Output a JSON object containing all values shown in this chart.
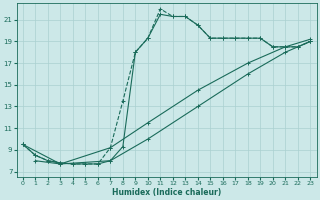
{
  "xlabel": "Humidex (Indice chaleur)",
  "xlim": [
    -0.5,
    23.5
  ],
  "ylim": [
    6.5,
    22.5
  ],
  "xticks": [
    0,
    1,
    2,
    3,
    4,
    5,
    6,
    7,
    8,
    9,
    10,
    11,
    12,
    13,
    14,
    15,
    16,
    17,
    18,
    19,
    20,
    21,
    22,
    23
  ],
  "yticks": [
    7,
    9,
    11,
    13,
    15,
    17,
    19,
    21
  ],
  "bg_color": "#cce8e8",
  "line_color": "#1a6b5a",
  "grid_color": "#aad0d0",
  "series": [
    {
      "x": [
        0,
        1,
        2,
        3,
        4,
        5,
        6,
        7,
        8,
        9,
        10,
        11,
        12,
        13,
        14,
        15,
        16,
        17,
        18,
        19,
        20,
        21,
        22,
        23
      ],
      "y": [
        9.5,
        8.5,
        8.0,
        7.8,
        7.7,
        7.7,
        7.7,
        9.2,
        13.5,
        18.0,
        19.3,
        22.0,
        21.3,
        21.3,
        20.5,
        19.3,
        19.3,
        19.3,
        19.3,
        19.3,
        18.5,
        18.5,
        18.5,
        19.0
      ],
      "linestyle": "--"
    },
    {
      "x": [
        0,
        1,
        2,
        3,
        4,
        5,
        6,
        7,
        8,
        9,
        10,
        11,
        12,
        13,
        14,
        15,
        16,
        17,
        18,
        19,
        20,
        21,
        22,
        23
      ],
      "y": [
        9.5,
        8.5,
        8.0,
        7.8,
        7.7,
        7.7,
        7.7,
        8.0,
        9.3,
        18.0,
        19.3,
        21.5,
        21.3,
        21.3,
        20.5,
        19.3,
        19.3,
        19.3,
        19.3,
        19.3,
        18.5,
        18.5,
        18.5,
        19.0
      ],
      "linestyle": "-"
    },
    {
      "x": [
        1,
        3,
        7,
        10,
        14,
        18,
        21,
        23
      ],
      "y": [
        8.0,
        7.7,
        8.0,
        10.0,
        13.0,
        16.0,
        18.0,
        19.0
      ],
      "linestyle": "-"
    },
    {
      "x": [
        0,
        3,
        7,
        10,
        14,
        18,
        21,
        23
      ],
      "y": [
        9.5,
        7.7,
        9.2,
        11.5,
        14.5,
        17.0,
        18.5,
        19.2
      ],
      "linestyle": "-"
    }
  ]
}
